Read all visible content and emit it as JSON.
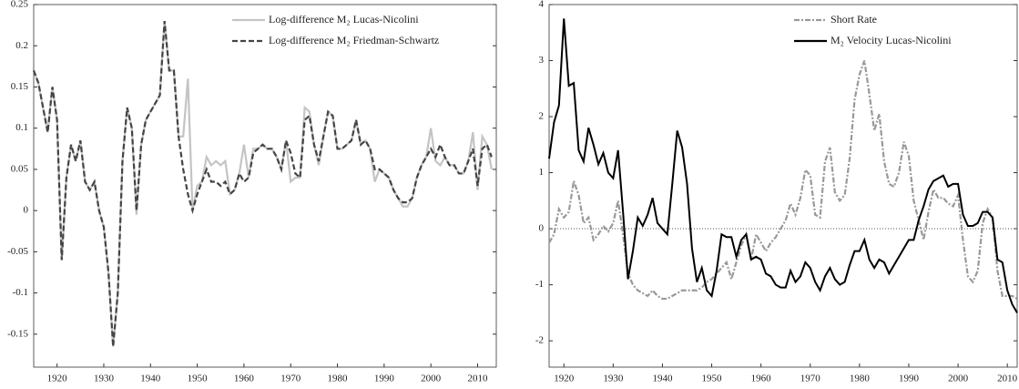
{
  "chart_data": [
    {
      "type": "line",
      "x": [
        1915,
        1916,
        1917,
        1918,
        1919,
        1920,
        1921,
        1922,
        1923,
        1924,
        1925,
        1926,
        1927,
        1928,
        1929,
        1930,
        1931,
        1932,
        1933,
        1934,
        1935,
        1936,
        1937,
        1938,
        1939,
        1940,
        1941,
        1942,
        1943,
        1944,
        1945,
        1946,
        1947,
        1948,
        1949,
        1950,
        1951,
        1952,
        1953,
        1954,
        1955,
        1956,
        1957,
        1958,
        1959,
        1960,
        1961,
        1962,
        1963,
        1964,
        1965,
        1966,
        1967,
        1968,
        1969,
        1970,
        1971,
        1972,
        1973,
        1974,
        1975,
        1976,
        1977,
        1978,
        1979,
        1980,
        1981,
        1982,
        1983,
        1984,
        1985,
        1986,
        1987,
        1988,
        1989,
        1990,
        1991,
        1992,
        1993,
        1994,
        1995,
        1996,
        1997,
        1998,
        1999,
        2000,
        2001,
        2002,
        2003,
        2004,
        2005,
        2006,
        2007,
        2008,
        2009,
        2010,
        2011,
        2012,
        2013
      ],
      "series": [
        {
          "name": "Log-difference M₂ Lucas-Nicolini",
          "color": "#c4c4c4",
          "line_style": "solid",
          "values": [
            0.17,
            0.155,
            0.125,
            0.095,
            0.15,
            0.11,
            -0.06,
            0.04,
            0.08,
            0.06,
            0.085,
            0.035,
            0.025,
            0.035,
            0,
            -0.02,
            -0.075,
            -0.165,
            -0.1,
            0.06,
            0.125,
            0.1,
            -0.005,
            0.08,
            0.11,
            0.12,
            0.13,
            0.14,
            0.23,
            0.17,
            0.17,
            0.09,
            0.09,
            0.16,
            0,
            0.03,
            0.035,
            0.065,
            0.055,
            0.06,
            0.055,
            0.06,
            0.02,
            0.025,
            0.045,
            0.08,
            0.04,
            0.075,
            0.075,
            0.08,
            0.075,
            0.075,
            0.065,
            0.05,
            0.085,
            0.035,
            0.04,
            0.04,
            0.125,
            0.12,
            0.08,
            0.055,
            0.09,
            0.12,
            0.115,
            0.075,
            0.075,
            0.08,
            0.085,
            0.11,
            0.08,
            0.085,
            0.075,
            0.035,
            0.05,
            0.045,
            0.04,
            0.025,
            0.015,
            0.005,
            0.005,
            0.015,
            0.04,
            0.055,
            0.065,
            0.1,
            0.06,
            0.055,
            0.065,
            0.055,
            0.055,
            0.045,
            0.045,
            0.06,
            0.095,
            0.025,
            0.09,
            0.08,
            0.05
          ]
        },
        {
          "name": "Log-difference M₂ Friedman-Schwartz",
          "color": "#444444",
          "line_style": "dashed",
          "values": [
            0.17,
            0.155,
            0.125,
            0.095,
            0.15,
            0.11,
            -0.06,
            0.04,
            0.08,
            0.06,
            0.085,
            0.035,
            0.025,
            0.035,
            0,
            -0.02,
            -0.075,
            -0.165,
            -0.1,
            0.06,
            0.125,
            0.1,
            0,
            0.08,
            0.11,
            0.12,
            0.13,
            0.14,
            0.23,
            0.17,
            0.17,
            0.09,
            0.05,
            0.02,
            0,
            0.02,
            0.035,
            0.05,
            0.035,
            0.035,
            0.03,
            0.035,
            0.02,
            0.025,
            0.045,
            0.035,
            0.04,
            0.07,
            0.075,
            0.08,
            0.075,
            0.075,
            0.065,
            0.05,
            0.085,
            0.07,
            0.045,
            0.04,
            0.11,
            0.115,
            0.08,
            0.06,
            0.09,
            0.12,
            0.115,
            0.075,
            0.075,
            0.08,
            0.085,
            0.11,
            0.08,
            0.085,
            0.075,
            0.05,
            0.05,
            0.045,
            0.04,
            0.025,
            0.015,
            0.01,
            0.01,
            0.015,
            0.04,
            0.055,
            0.065,
            0.075,
            0.065,
            0.08,
            0.065,
            0.055,
            0.055,
            0.045,
            0.045,
            0.06,
            0.075,
            0.03,
            0.075,
            0.08,
            0.065
          ]
        }
      ],
      "xlim": [
        1915,
        2014
      ],
      "ylim": [
        -0.19,
        0.25
      ],
      "xticks": [
        1920,
        1930,
        1940,
        1950,
        1960,
        1970,
        1980,
        1990,
        2000,
        2010
      ],
      "yticks": [
        -0.15,
        -0.1,
        -0.05,
        0,
        0.05,
        0.1,
        0.15,
        0.2,
        0.25
      ],
      "legend": "upper right"
    },
    {
      "type": "line",
      "x": [
        1917,
        1918,
        1919,
        1920,
        1921,
        1922,
        1923,
        1924,
        1925,
        1926,
        1927,
        1928,
        1929,
        1930,
        1931,
        1932,
        1933,
        1934,
        1935,
        1936,
        1937,
        1938,
        1939,
        1940,
        1941,
        1942,
        1943,
        1944,
        1945,
        1946,
        1947,
        1948,
        1949,
        1950,
        1951,
        1952,
        1953,
        1954,
        1955,
        1956,
        1957,
        1958,
        1959,
        1960,
        1961,
        1962,
        1963,
        1964,
        1965,
        1966,
        1967,
        1968,
        1969,
        1970,
        1971,
        1972,
        1973,
        1974,
        1975,
        1976,
        1977,
        1978,
        1979,
        1980,
        1981,
        1982,
        1983,
        1984,
        1985,
        1986,
        1987,
        1988,
        1989,
        1990,
        1991,
        1992,
        1993,
        1994,
        1995,
        1996,
        1997,
        1998,
        1999,
        2000,
        2001,
        2002,
        2003,
        2004,
        2005,
        2006,
        2007,
        2008,
        2009,
        2010,
        2011,
        2012
      ],
      "series": [
        {
          "name": "Short Rate",
          "color": "#999999",
          "line_style": "dashdot",
          "values": [
            -0.25,
            -0.1,
            0.35,
            0.2,
            0.3,
            0.85,
            0.6,
            0.1,
            0.2,
            -0.2,
            -0.1,
            0.05,
            -0.05,
            0.1,
            0.5,
            -0.1,
            -0.8,
            -1,
            -1.1,
            -1.15,
            -1.2,
            -1.1,
            -1.2,
            -1.25,
            -1.25,
            -1.2,
            -1.15,
            -1.1,
            -1.1,
            -1.1,
            -1.1,
            -1.05,
            -0.95,
            -0.9,
            -0.8,
            -0.7,
            -0.6,
            -0.9,
            -0.6,
            -0.3,
            -0.1,
            -0.55,
            -0.1,
            -0.25,
            -0.4,
            -0.25,
            -0.15,
            0,
            0.15,
            0.45,
            0.25,
            0.55,
            1.05,
            0.95,
            0.25,
            0.2,
            1.2,
            1.45,
            0.65,
            0.5,
            0.6,
            1.25,
            2.3,
            2.75,
            3,
            2.4,
            1.75,
            2.05,
            1.2,
            0.8,
            0.75,
            1,
            1.55,
            1.3,
            0.5,
            0.15,
            -0.2,
            0.3,
            0.7,
            0.55,
            0.55,
            0.45,
            0.4,
            0.6,
            -0.2,
            -0.85,
            -0.95,
            -0.75,
            0.1,
            0.35,
            0.2,
            -0.75,
            -1.2,
            -1.2,
            -1.2,
            -1.25
          ]
        },
        {
          "name": "M₂ Velocity Lucas-Nicolini",
          "color": "#000000",
          "line_style": "solid",
          "values": [
            1.25,
            1.9,
            2.2,
            3.75,
            2.55,
            2.6,
            1.4,
            1.2,
            1.8,
            1.5,
            1.15,
            1.35,
            1,
            0.9,
            1.4,
            0.3,
            -0.9,
            -0.4,
            0.2,
            0.05,
            0.25,
            0.55,
            0.1,
            0,
            -0.1,
            0.8,
            1.75,
            1.45,
            0.8,
            -0.35,
            -0.95,
            -0.7,
            -1.1,
            -1.2,
            -0.75,
            -0.1,
            -0.15,
            -0.15,
            -0.5,
            -0.2,
            -0.1,
            -0.55,
            -0.5,
            -0.55,
            -0.8,
            -0.85,
            -1,
            -1.05,
            -1.05,
            -0.75,
            -0.95,
            -0.85,
            -0.6,
            -0.7,
            -0.95,
            -1.1,
            -0.85,
            -0.7,
            -0.9,
            -1,
            -0.95,
            -0.65,
            -0.4,
            -0.4,
            -0.2,
            -0.55,
            -0.7,
            -0.55,
            -0.6,
            -0.8,
            -0.65,
            -0.5,
            -0.35,
            -0.2,
            -0.2,
            0.15,
            0.4,
            0.7,
            0.85,
            0.9,
            0.95,
            0.75,
            0.8,
            0.8,
            0.25,
            0.05,
            0.05,
            0.1,
            0.3,
            0.3,
            0.2,
            -0.55,
            -0.6,
            -1.1,
            -1.35,
            -1.5
          ]
        }
      ],
      "xlim": [
        1917,
        2012
      ],
      "ylim": [
        -2.47,
        4
      ],
      "xticks": [
        1920,
        1930,
        1940,
        1950,
        1960,
        1970,
        1980,
        1990,
        2000,
        2010
      ],
      "yticks": [
        -2,
        -1,
        0,
        1,
        2,
        3,
        4
      ],
      "reference_line": 0,
      "legend": "upper right"
    }
  ]
}
